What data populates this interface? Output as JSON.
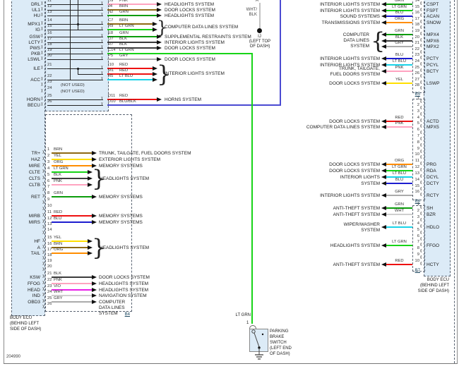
{
  "doc_number": "204990",
  "not_used_label": "(NOT USED)",
  "ecu_left_label": [
    "BODY ECU",
    "(BEHIND LEFT",
    "SIDE OF DASH)"
  ],
  "ecu_right_label": [
    "BODY ECU",
    "(BEHIND LEFT",
    "SIDE OF DASH)"
  ],
  "mid": {
    "pin_letter": "A",
    "wire_label_lines": [
      "WHT/",
      "BLK"
    ],
    "connector": "IJ",
    "connector_loc_lines": [
      "(LEFT TOP",
      "OF DASH)"
    ]
  },
  "parking_brake": {
    "wire_label": "LT GRN",
    "pin": "1",
    "label_lines": [
      "PARKING",
      "BRAKE",
      "SWITCH",
      "(LEFT END",
      "OF DASH)"
    ]
  },
  "wire_color_hex": {
    "BRN": "#8f6a14",
    "YEL": "#ffdf00",
    "ORG": "#ff8d00",
    "LT GRN": "#17d417",
    "GRN": "#0b9c0b",
    "BLK": "#3c3c3c",
    "PNK": "#ffa3c0",
    "RED": "#ee1111",
    "BLU": "#1d1dcf",
    "LT BLU": "#19d3e8",
    "GRY": "#ababab",
    "VIO": "#e81ee8",
    "WHT": "#cfcfcf",
    "BLU/BLK": "#4a4ad2"
  },
  "section_b3": {
    "rows": [
      {
        "pin": "11",
        "name": "DRL",
        "code": "D9",
        "color": "PNK",
        "system": "HEADLIGHTS SYSTEM"
      },
      {
        "pin": "12",
        "name": "UL1",
        "code": "J4",
        "color": "BRN",
        "system": "DOOR LOCKS SYSTEM"
      },
      {
        "pin": "13",
        "name": "HU",
        "code": "N2",
        "color": "GRN",
        "system": "HEADLIGHTS SYSTEM"
      },
      {
        "pin": "14",
        "name": "MPX1",
        "code": "C7",
        "color": "BRN",
        "group": "cdl"
      },
      {
        "pin": "15",
        "name": "IG",
        "code": "R9",
        "color": "LT GRN",
        "group": "cdl"
      },
      {
        "pin": "16",
        "name": "GSW",
        "code": "E8",
        "color": "GRN",
        "system": "SUPPLEMENTAL RESTRAINTS SYSTEM"
      },
      {
        "pin": "17",
        "name": "LCTY",
        "code": "O7",
        "color": "BLK",
        "system": "INTERIOR LIGHTS SYSTEM"
      },
      {
        "pin": "18",
        "name": "PWS",
        "code": "R7",
        "color": "BLK",
        "system": "DOOR LOCKS SYSTEM"
      },
      {
        "pin": "19",
        "name": "PKB",
        "code": "C14",
        "color": "LT GRN",
        "route": "parking_brake"
      },
      {
        "pin": "20",
        "name": "LSWL",
        "code": "P5",
        "color": "GRY",
        "system": "DOOR LOCKS SYSTEM"
      },
      {
        "pin": "21",
        "name": "ILE",
        "code": "I10",
        "color": "RED",
        "group": "int"
      },
      {
        "pin": "",
        "name": "",
        "code": "M1",
        "color": "RED",
        "group": "int",
        "half": true
      },
      {
        "pin": "22",
        "name": "ACC",
        "code": "R5",
        "color": "LT BLU",
        "group": "int"
      },
      {
        "pin": "23",
        "not_used": true
      },
      {
        "pin": "24",
        "not_used": true
      },
      {
        "pin": "25",
        "name": "HORN",
        "code": "D11",
        "color": "RED",
        "system": "HORNS SYSTEM"
      },
      {
        "pin": "26",
        "name": "BECU",
        "code": "D10",
        "color": "BLU/BLK",
        "route": "top_right"
      }
    ],
    "groups": {
      "cdl": {
        "label": "COMPUTER DATA LINES SYSTEM"
      },
      "int": {
        "label": "INTERIOR LIGHTS SYSTEM"
      }
    }
  },
  "section_b4": {
    "label": "B4",
    "rows": [
      {
        "pin": "1",
        "name": "TR+",
        "color": "BRN",
        "system": "TRUNK, TAILGATE, FUEL DOORS SYSTEM"
      },
      {
        "pin": "2",
        "name": "HAZ",
        "color": "YEL",
        "system": "EXTERIOR LIGHTS SYSTEM"
      },
      {
        "pin": "3",
        "name": "MIRE",
        "color": "ORG",
        "system": "MEMORY SYSTEMS"
      },
      {
        "pin": "4",
        "name": "CLTE",
        "color": "LT GRN",
        "group": "hl1"
      },
      {
        "pin": "5",
        "name": "CLTS",
        "color": "BLK",
        "group": "hl1"
      },
      {
        "pin": "6",
        "name": "CLTB",
        "color": "PNK",
        "group": "hl1"
      },
      {
        "pin": "7"
      },
      {
        "pin": "8",
        "name": "RET",
        "color": "GRN",
        "system": "MEMORY SYSTEMS"
      },
      {
        "pin": "9"
      },
      {
        "pin": "10"
      },
      {
        "pin": "11",
        "name": "MIRB",
        "color": "RED",
        "system": "MEMORY SYSTEMS"
      },
      {
        "pin": "12",
        "name": "MIRS",
        "color": "BLU",
        "system": "MEMORY SYSTEMS"
      },
      {
        "pin": "13"
      },
      {
        "pin": "14"
      },
      {
        "pin": "15",
        "name": "HF",
        "color": "YEL",
        "group": "hl2"
      },
      {
        "pin": "16",
        "name": "A",
        "color": "BRN",
        "group": "hl2"
      },
      {
        "pin": "17",
        "name": "TAIL",
        "color": "ORG",
        "group": "hl2"
      },
      {
        "pin": "18"
      },
      {
        "pin": "19"
      },
      {
        "pin": "20"
      },
      {
        "pin": "21",
        "name": "KSW",
        "color": "BLK",
        "system": "DOOR LOCKS SYSTEM"
      },
      {
        "pin": "22",
        "name": "FFOG",
        "color": "PNK",
        "system": "HEADLIGHTS SYSTEM"
      },
      {
        "pin": "23",
        "name": "HEAD",
        "color": "VIO",
        "system": "HEADLIGHTS SYSTEM"
      },
      {
        "pin": "24",
        "name": "IND",
        "color": "WHT",
        "system": "NAVIGATION SYSTEM"
      },
      {
        "pin": "25",
        "name": "OBD3",
        "color": "GRY",
        "system_lines": [
          "COMPUTER",
          "DATA LINES",
          "SYSTEM"
        ]
      },
      {
        "pin": "26"
      }
    ],
    "groups": {
      "hl1": {
        "label": "HEADLIGHTS SYSTEM"
      },
      "hl2": {
        "label": "HEADLIGHTS SYSTEM"
      }
    }
  },
  "section_b5": {
    "label": "B5",
    "rows": [
      {
        "pin": "14",
        "name": "CSPT",
        "color": "GRN",
        "system": "INTERIOR LIGHTS SYSTEM"
      },
      {
        "pin": "15",
        "name": "FSPT",
        "color": "LT GRN",
        "system": "INTERIOR LIGHTS SYSTEM"
      },
      {
        "pin": "16",
        "name": "ACAN",
        "color": "BLU",
        "system": "SOUND SYSTEMS"
      },
      {
        "pin": "17",
        "name": "SNOW",
        "color": "ORG",
        "system": "TRANSMISSIONS SYSTEM"
      },
      {
        "pin": "18"
      },
      {
        "pin": "19",
        "name": "MPX4",
        "color": "GRN",
        "group": "cdl2"
      },
      {
        "pin": "20",
        "name": "MPX6",
        "color": "BLK",
        "group": "cdl2"
      },
      {
        "pin": "21",
        "name": "MPX2",
        "color": "GRY",
        "group": "cdl2"
      },
      {
        "pin": "22"
      },
      {
        "pin": "23",
        "name": "PCTY",
        "color": "BLU",
        "system": "INTERIOR LIGHTS SYSTEM"
      },
      {
        "pin": "24",
        "name": "PCYL",
        "color": "LT BLU",
        "system": "INTERIOR LIGHTS SYSTEM"
      },
      {
        "pin": "25",
        "name": "BCTY",
        "color": "PNK",
        "system_lines": [
          "TRUNK, TAILGATE,",
          "FUEL DOORS SYSTEM"
        ]
      },
      {
        "pin": "26"
      },
      {
        "pin": "27",
        "name": "LSWP",
        "color": "YEL",
        "system": "DOOR LOCKS SYSTEM"
      },
      {
        "pin": "28"
      }
    ],
    "groups": {
      "cdl2": {
        "label_lines": [
          "COMPUTER",
          "DATA LINES",
          "SYSTEM"
        ]
      }
    }
  },
  "section_b6": {
    "label": "B6",
    "rows": [
      {
        "pin": "1"
      },
      {
        "pin": "2"
      },
      {
        "pin": "3"
      },
      {
        "pin": "4",
        "name": "ACTD",
        "color": "RED",
        "system": "DOOR LOCKS SYSTEM"
      },
      {
        "pin": "5",
        "name": "MPX5",
        "color": "PNK",
        "system": "COMPUTER DATA LINES SYSTEM"
      },
      {
        "pin": "6"
      },
      {
        "pin": "7"
      },
      {
        "pin": "8"
      },
      {
        "pin": "9"
      },
      {
        "pin": "10"
      },
      {
        "pin": "11",
        "name": "PRG",
        "color": "ORG",
        "system": "DOOR LOCKS SYSTEM"
      },
      {
        "pin": "12",
        "name": "RDA",
        "color": "LT GRN",
        "system": "DOOR LOCKS SYSTEM"
      },
      {
        "pin": "13",
        "name": "DCYL",
        "color": "LT BLU",
        "system": "INTERIOR LIGHTS"
      },
      {
        "pin": "14",
        "name": "DCTY",
        "color": "BLU",
        "system": "SYSTEM"
      },
      {
        "pin": "15"
      },
      {
        "pin": "16",
        "name": "RCTY",
        "color": "GRY",
        "system": "INTERIOR LIGHTS SYSTEM"
      }
    ]
  },
  "section_b7": {
    "label": "B7",
    "rows": [
      {
        "pin": "1",
        "name": "SH",
        "color": "GRN",
        "system": "ANTI-THEFT SYSTEM"
      },
      {
        "pin": "2",
        "name": "BZR",
        "color": "WHT",
        "system": "ANTI-THEFT SYSTEM"
      },
      {
        "pin": "3"
      },
      {
        "pin": "4",
        "name": "HDLO",
        "color": "LT BLU",
        "system_lines": [
          "WIPER/WASHER",
          "SYSTEM"
        ]
      },
      {
        "pin": "5"
      },
      {
        "pin": "6"
      },
      {
        "pin": "7",
        "name": "FFGO",
        "color": "LT GRN",
        "system": "HEADLIGHTS SYSTEM"
      },
      {
        "pin": "8"
      },
      {
        "pin": "9"
      },
      {
        "pin": "10",
        "name": "HCTY",
        "color": "RED",
        "system": "ANTI-THEFT SYSTEM"
      }
    ]
  }
}
